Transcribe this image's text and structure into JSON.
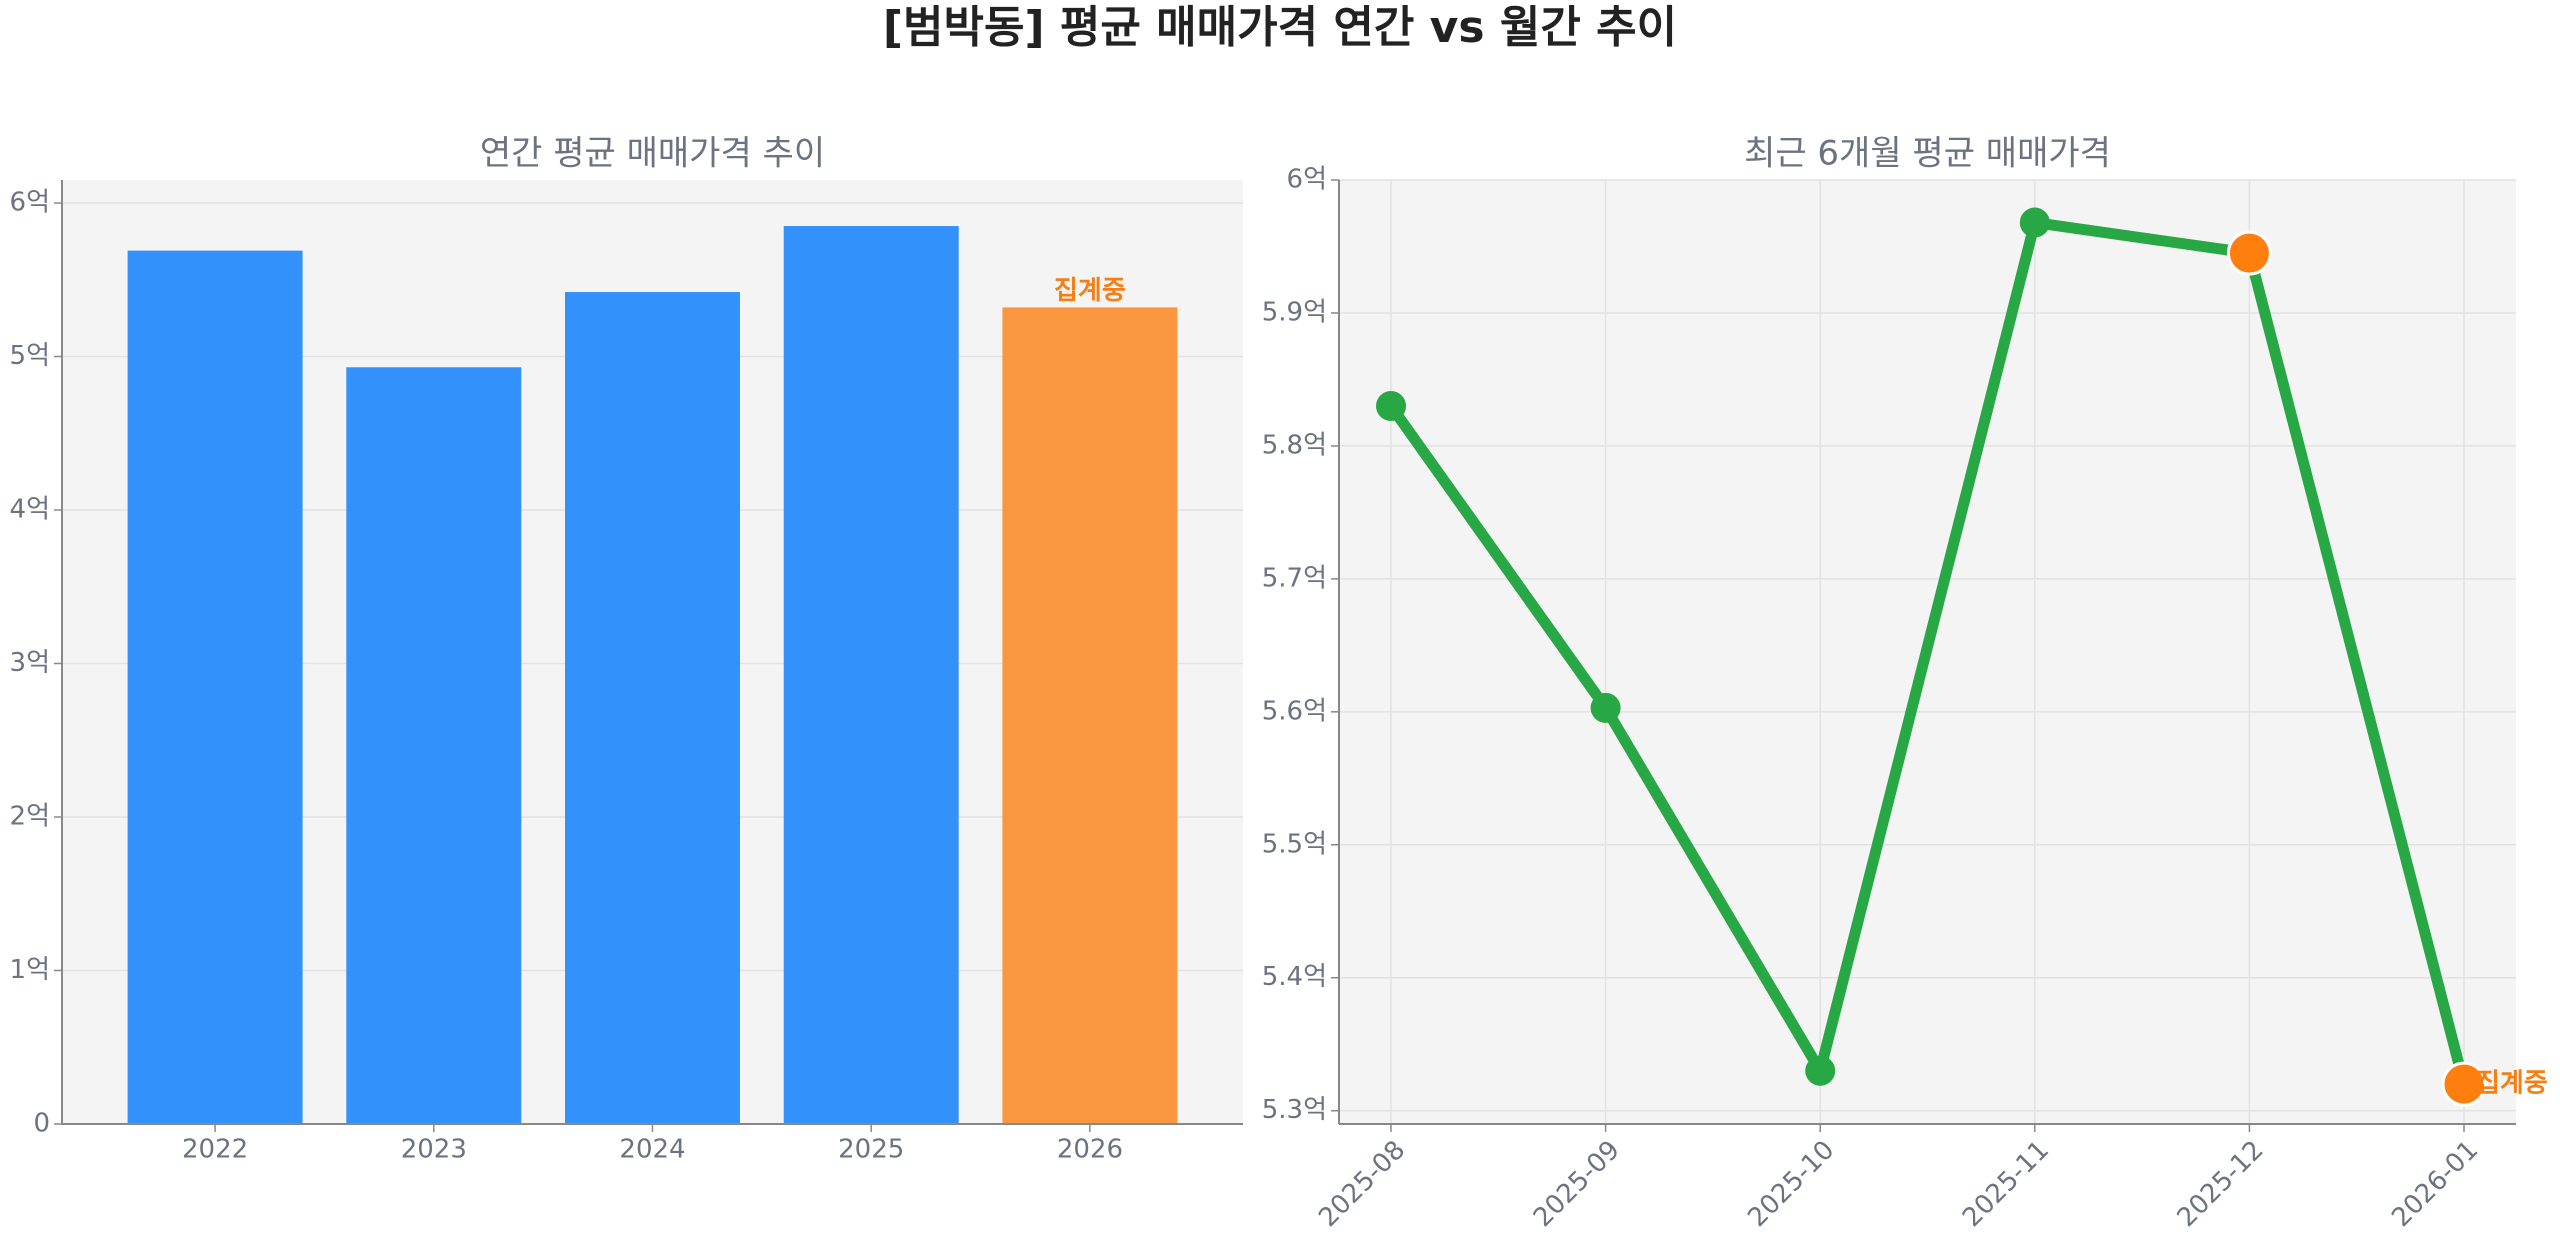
{
  "title": "[범박동] 평균 매매가격 연간 vs 월간 추이",
  "chart_data": [
    {
      "type": "bar",
      "title": "연간 평균 매매가격 추이",
      "categories": [
        "2022",
        "2023",
        "2024",
        "2025",
        "2026"
      ],
      "values": [
        5.69,
        4.93,
        5.42,
        5.85,
        5.32
      ],
      "colors": [
        "#3291fa",
        "#3291fa",
        "#3291fa",
        "#3291fa",
        "#f9963f"
      ],
      "annotation": "집계중",
      "annotation_color": "#f57f17",
      "ylim": [
        0,
        6.15
      ],
      "yticks": [
        0,
        {
          "value": 1,
          "label": "1억"
        },
        {
          "value": 2,
          "label": "2억"
        },
        {
          "value": 3,
          "label": "3억"
        },
        {
          "value": 4,
          "label": "4억"
        },
        {
          "value": 5,
          "label": "5억"
        },
        {
          "value": 6,
          "label": "6억"
        }
      ],
      "grid": true
    },
    {
      "type": "line",
      "title": "최근 6개월 평균 매매가격",
      "x": [
        "2025-08",
        "2025-09",
        "2025-10",
        "2025-11",
        "2025-12",
        "2026-01"
      ],
      "values": [
        5.83,
        5.603,
        5.33,
        5.968,
        5.945,
        5.32
      ],
      "color": "#28a745",
      "marker_colors": [
        "#28a745",
        "#28a745",
        "#28a745",
        "#28a745",
        "#ff7f0e",
        "#ff7f0e"
      ],
      "annotation": "집계중",
      "annotation_color": "#f57f17",
      "ylim": [
        5.29,
        6.0
      ],
      "yticks": [
        {
          "value": 5.3,
          "label": "5.3억"
        },
        {
          "value": 5.4,
          "label": "5.4억"
        },
        {
          "value": 5.5,
          "label": "5.5억"
        },
        {
          "value": 5.6,
          "label": "5.6억"
        },
        {
          "value": 5.7,
          "label": "5.7억"
        },
        {
          "value": 5.8,
          "label": "5.8억"
        },
        {
          "value": 5.9,
          "label": "5.9억"
        },
        {
          "value": 6.0,
          "label": "6억"
        }
      ],
      "grid": true
    }
  ]
}
